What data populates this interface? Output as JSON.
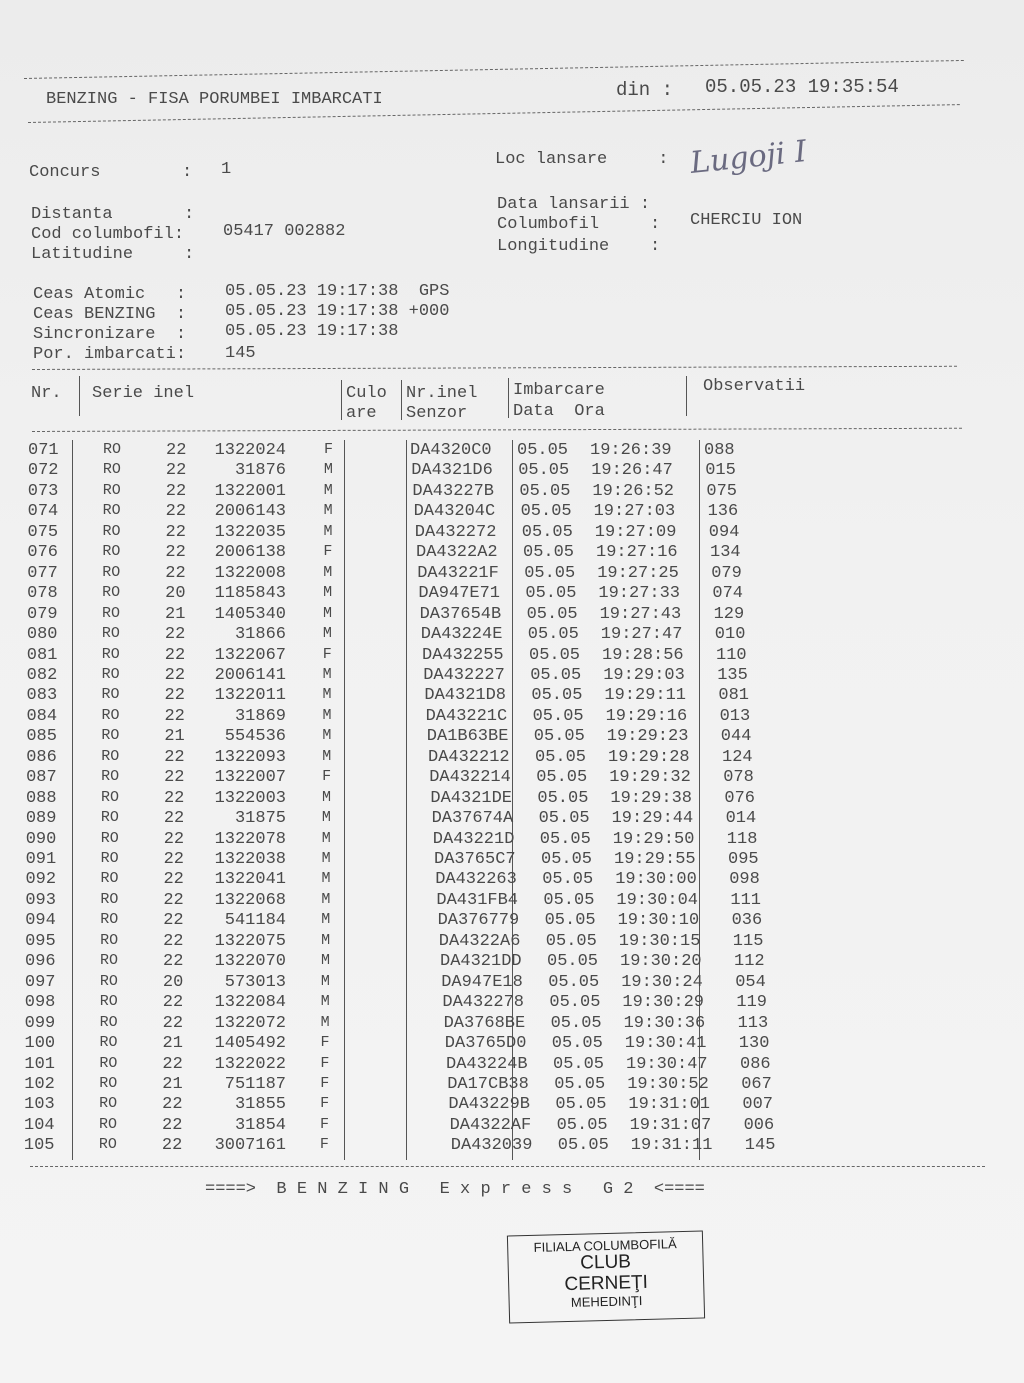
{
  "header": {
    "title": "BENZING - FISA PORUMBEI IMBARCATI",
    "din_label": "din :",
    "din_value": "05.05.23 19:35:54"
  },
  "info": {
    "concurs_label": "Concurs        :",
    "concurs_value": "1",
    "distanta_label": "Distanta       :",
    "cod_label": "Cod columbofil:",
    "cod_value": "05417 002882",
    "latitudine_label": "Latitudine     :",
    "loc_label": "Loc lansare     :",
    "loc_value_handwritten": "Lugoji I",
    "data_lansarii_label": "Data lansarii :",
    "columbofil_label": "Columbofil     :",
    "columbofil_value": "CHERCIU ION",
    "longitudine_label": "Longitudine    :",
    "ceas_atomic_label": "Ceas Atomic   :",
    "ceas_atomic_value": "05.05.23 19:17:38  GPS",
    "ceas_benzing_label": "Ceas BENZING  :",
    "ceas_benzing_value": "05.05.23 19:17:38 +000",
    "sincronizare_label": "Sincronizare  :",
    "sincronizare_value": "05.05.23 19:17:38",
    "por_label": "Por. imbarcati:",
    "por_value": "145"
  },
  "table": {
    "headers": {
      "nr": "Nr.",
      "serie": "Serie inel",
      "culoare_1": "Culo",
      "culoare_2": "are",
      "nrinel_1": "Nr.inel",
      "nrinel_2": "Senzor",
      "imbarcare_1": "Imbarcare",
      "imbarcare_2": "Data  Ora",
      "observatii": "Observatii"
    },
    "rows": [
      [
        "071",
        "RO",
        "22",
        "1322024",
        "F",
        "DA4320C0",
        "05.05",
        "19:26:39",
        "088"
      ],
      [
        "072",
        "RO",
        "22",
        "31876",
        "M",
        "DA4321D6",
        "05.05",
        "19:26:47",
        "015"
      ],
      [
        "073",
        "RO",
        "22",
        "1322001",
        "M",
        "DA43227B",
        "05.05",
        "19:26:52",
        "075"
      ],
      [
        "074",
        "RO",
        "22",
        "2006143",
        "M",
        "DA43204C",
        "05.05",
        "19:27:03",
        "136"
      ],
      [
        "075",
        "RO",
        "22",
        "1322035",
        "M",
        "DA432272",
        "05.05",
        "19:27:09",
        "094"
      ],
      [
        "076",
        "RO",
        "22",
        "2006138",
        "F",
        "DA4322A2",
        "05.05",
        "19:27:16",
        "134"
      ],
      [
        "077",
        "RO",
        "22",
        "1322008",
        "M",
        "DA43221F",
        "05.05",
        "19:27:25",
        "079"
      ],
      [
        "078",
        "RO",
        "20",
        "1185843",
        "M",
        "DA947E71",
        "05.05",
        "19:27:33",
        "074"
      ],
      [
        "079",
        "RO",
        "21",
        "1405340",
        "M",
        "DA37654B",
        "05.05",
        "19:27:43",
        "129"
      ],
      [
        "080",
        "RO",
        "22",
        "31866",
        "M",
        "DA43224E",
        "05.05",
        "19:27:47",
        "010"
      ],
      [
        "081",
        "RO",
        "22",
        "1322067",
        "F",
        "DA432255",
        "05.05",
        "19:28:56",
        "110"
      ],
      [
        "082",
        "RO",
        "22",
        "2006141",
        "M",
        "DA432227",
        "05.05",
        "19:29:03",
        "135"
      ],
      [
        "083",
        "RO",
        "22",
        "1322011",
        "M",
        "DA4321D8",
        "05.05",
        "19:29:11",
        "081"
      ],
      [
        "084",
        "RO",
        "22",
        "31869",
        "M",
        "DA43221C",
        "05.05",
        "19:29:16",
        "013"
      ],
      [
        "085",
        "RO",
        "21",
        "554536",
        "M",
        "DA1B63BE",
        "05.05",
        "19:29:23",
        "044"
      ],
      [
        "086",
        "RO",
        "22",
        "1322093",
        "M",
        "DA432212",
        "05.05",
        "19:29:28",
        "124"
      ],
      [
        "087",
        "RO",
        "22",
        "1322007",
        "F",
        "DA432214",
        "05.05",
        "19:29:32",
        "078"
      ],
      [
        "088",
        "RO",
        "22",
        "1322003",
        "M",
        "DA4321DE",
        "05.05",
        "19:29:38",
        "076"
      ],
      [
        "089",
        "RO",
        "22",
        "31875",
        "M",
        "DA37674A",
        "05.05",
        "19:29:44",
        "014"
      ],
      [
        "090",
        "RO",
        "22",
        "1322078",
        "M",
        "DA43221D",
        "05.05",
        "19:29:50",
        "118"
      ],
      [
        "091",
        "RO",
        "22",
        "1322038",
        "M",
        "DA3765C7",
        "05.05",
        "19:29:55",
        "095"
      ],
      [
        "092",
        "RO",
        "22",
        "1322041",
        "M",
        "DA432263",
        "05.05",
        "19:30:00",
        "098"
      ],
      [
        "093",
        "RO",
        "22",
        "1322068",
        "M",
        "DA431FB4",
        "05.05",
        "19:30:04",
        "111"
      ],
      [
        "094",
        "RO",
        "22",
        "541184",
        "M",
        "DA376779",
        "05.05",
        "19:30:10",
        "036"
      ],
      [
        "095",
        "RO",
        "22",
        "1322075",
        "M",
        "DA4322A6",
        "05.05",
        "19:30:15",
        "115"
      ],
      [
        "096",
        "RO",
        "22",
        "1322070",
        "M",
        "DA4321DD",
        "05.05",
        "19:30:20",
        "112"
      ],
      [
        "097",
        "RO",
        "20",
        "573013",
        "M",
        "DA947E18",
        "05.05",
        "19:30:24",
        "054"
      ],
      [
        "098",
        "RO",
        "22",
        "1322084",
        "M",
        "DA432278",
        "05.05",
        "19:30:29",
        "119"
      ],
      [
        "099",
        "RO",
        "22",
        "1322072",
        "M",
        "DA3768BE",
        "05.05",
        "19:30:36",
        "113"
      ],
      [
        "100",
        "RO",
        "21",
        "1405492",
        "F",
        "DA3765D0",
        "05.05",
        "19:30:41",
        "130"
      ],
      [
        "101",
        "RO",
        "22",
        "1322022",
        "F",
        "DA43224B",
        "05.05",
        "19:30:47",
        "086"
      ],
      [
        "102",
        "RO",
        "21",
        "751187",
        "F",
        "DA17CB38",
        "05.05",
        "19:30:52",
        "067"
      ],
      [
        "103",
        "RO",
        "22",
        "31855",
        "F",
        "DA43229B",
        "05.05",
        "19:31:01",
        "007"
      ],
      [
        "104",
        "RO",
        "22",
        "31854",
        "F",
        "DA4322AF",
        "05.05",
        "19:31:07",
        "006"
      ],
      [
        "105",
        "RO",
        "22",
        "3007161",
        "F",
        "DA432039",
        "05.05",
        "19:31:11",
        "145"
      ]
    ]
  },
  "footer": {
    "text": "====>  B E N Z I N G   E x p r e s s   G 2  <===="
  },
  "stamp": {
    "line1": "FILIALA COLUMBOFILĂ",
    "line2": "CLUB",
    "line3": "CERNEŢI",
    "line4": "MEHEDINŢI"
  }
}
